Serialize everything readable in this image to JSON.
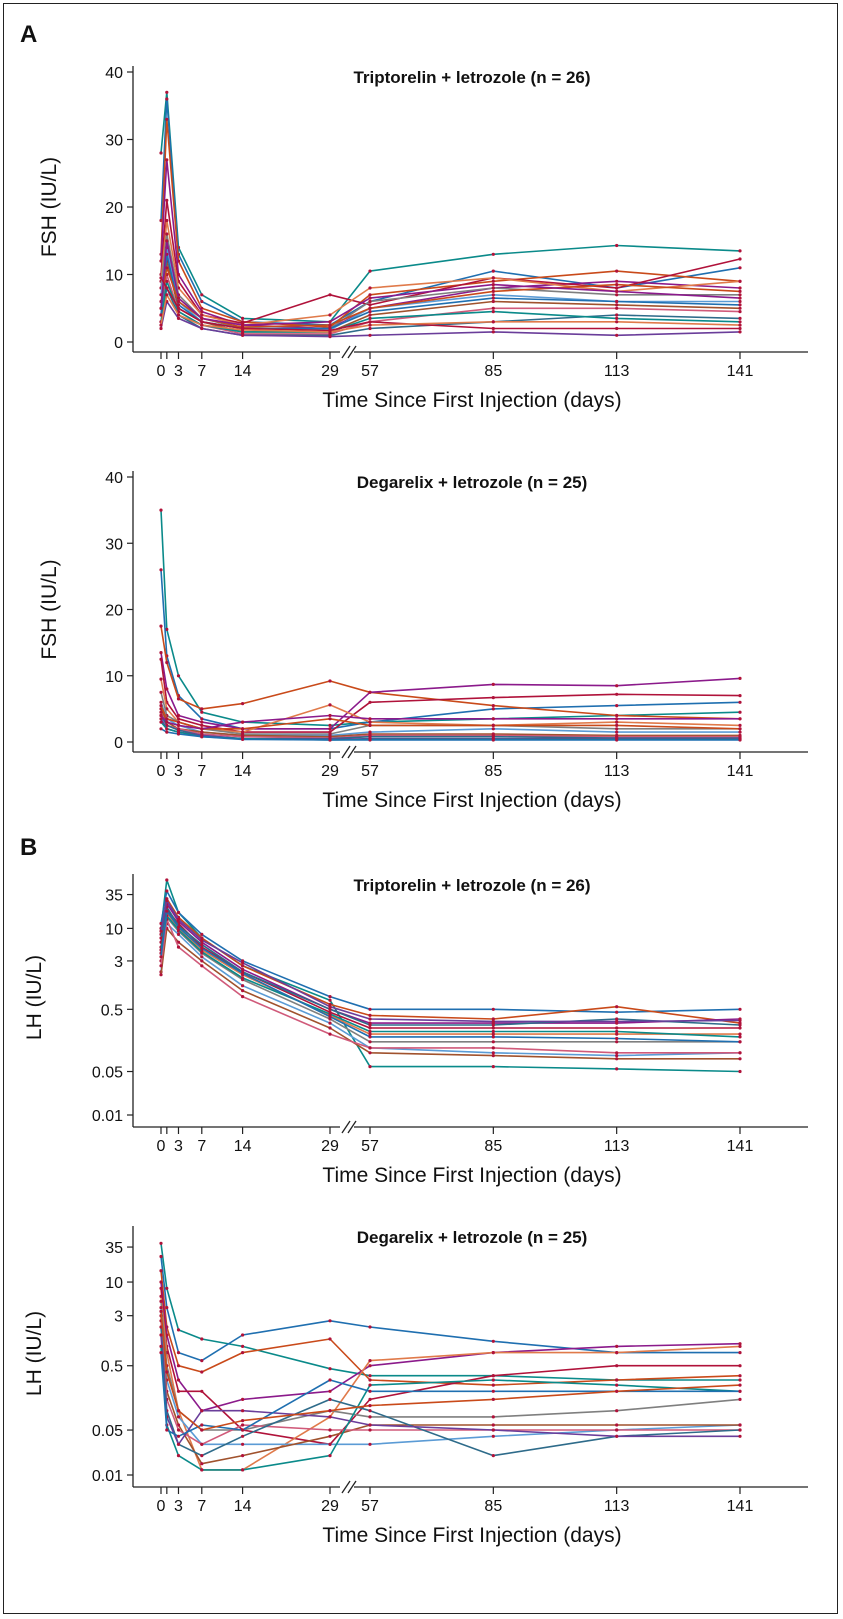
{
  "panel_labels": {
    "a": "A",
    "b": "B"
  },
  "chart_data": [
    {
      "type": "line",
      "title": "Triptorelin + letrozole (n = 26)",
      "xlabel": "Time Since First Injection (days)",
      "ylabel": "FSH (IU/L)",
      "x": [
        0,
        1,
        3,
        7,
        14,
        29,
        57,
        85,
        113,
        141
      ],
      "xticks": [
        "0",
        "3",
        "7",
        "14",
        "29",
        "57",
        "85",
        "113",
        "141"
      ],
      "yticks": [
        "0",
        "10",
        "20",
        "30",
        "40"
      ],
      "ylim": [
        0,
        40
      ],
      "yscale": "linear",
      "axis_break": "between 29 and 57",
      "series": [
        {
          "values": [
            28,
            37,
            14,
            7,
            3.5,
            3,
            10.5,
            13,
            14.3,
            13.5
          ]
        },
        {
          "values": [
            18,
            36,
            13,
            6,
            3,
            2.5,
            6,
            10.5,
            8,
            11
          ]
        },
        {
          "values": [
            13,
            33,
            12,
            5,
            3,
            2.2,
            7,
            9,
            10.5,
            9
          ]
        },
        {
          "values": [
            12,
            27,
            10,
            4.5,
            2.5,
            2,
            5,
            8,
            9,
            8
          ]
        },
        {
          "values": [
            10,
            21,
            9,
            4,
            2.8,
            7,
            5.5,
            9.5,
            8,
            12.3
          ]
        },
        {
          "values": [
            9,
            18,
            8,
            4,
            2.5,
            4,
            8,
            9.5,
            7.5,
            9
          ]
        },
        {
          "values": [
            8,
            16,
            7,
            3.5,
            2,
            2,
            6,
            8,
            7,
            7
          ]
        },
        {
          "values": [
            7,
            14,
            6,
            3,
            2,
            1.8,
            5,
            7,
            6,
            6
          ]
        },
        {
          "values": [
            5,
            12,
            5,
            3,
            1.5,
            1.5,
            4,
            6,
            5.5,
            5
          ]
        },
        {
          "values": [
            4,
            10,
            4.5,
            2.5,
            1.2,
            1.2,
            3,
            5,
            5,
            4.5
          ]
        },
        {
          "values": [
            3,
            8,
            4,
            2,
            1,
            1,
            2,
            3,
            4,
            3.5
          ]
        },
        {
          "values": [
            2,
            6,
            3.5,
            2,
            1,
            0.8,
            1,
            1.5,
            1,
            1.5
          ]
        },
        {
          "values": [
            3,
            9,
            4.5,
            2.5,
            1.5,
            1.5,
            3.5,
            4.5,
            3.5,
            3
          ]
        },
        {
          "values": [
            4,
            13,
            5.5,
            3,
            2,
            2,
            4.5,
            6.5,
            6,
            5.5
          ]
        },
        {
          "values": [
            6,
            11,
            6,
            3.5,
            2.2,
            2.5,
            5,
            7.5,
            8.5,
            7.5
          ]
        },
        {
          "values": [
            5,
            15,
            6.5,
            3.5,
            2.5,
            3,
            6.5,
            8.5,
            7.5,
            6.5
          ]
        },
        {
          "values": [
            9.5,
            8,
            5,
            3,
            2,
            1.7,
            3,
            2,
            2,
            2
          ]
        },
        {
          "values": [
            2.5,
            7,
            4,
            2.5,
            1.8,
            1.5,
            2.5,
            3,
            3,
            2.5
          ]
        }
      ]
    },
    {
      "type": "line",
      "title": "Degarelix + letrozole (n = 25)",
      "xlabel": "Time Since First Injection (days)",
      "ylabel": "FSH (IU/L)",
      "x": [
        0,
        1,
        3,
        7,
        14,
        29,
        57,
        85,
        113,
        141
      ],
      "xticks": [
        "0",
        "3",
        "7",
        "14",
        "29",
        "57",
        "85",
        "113",
        "141"
      ],
      "yticks": [
        "0",
        "10",
        "20",
        "30",
        "40"
      ],
      "ylim": [
        0,
        40
      ],
      "yscale": "linear",
      "axis_break": "between 29 and 57",
      "series": [
        {
          "values": [
            35,
            17,
            10,
            4.5,
            3,
            2.5,
            3,
            3.5,
            4,
            4.5
          ]
        },
        {
          "values": [
            26,
            13,
            7,
            3.5,
            2,
            2,
            3,
            5,
            5.5,
            6
          ]
        },
        {
          "values": [
            17.5,
            12,
            6.5,
            5,
            5.8,
            9.2,
            7.5,
            5.5,
            4,
            3.5
          ]
        },
        {
          "values": [
            13.5,
            8,
            4,
            3,
            2,
            2,
            7.5,
            8.7,
            8.5,
            9.6
          ]
        },
        {
          "values": [
            12.5,
            6,
            3.5,
            2.5,
            1.5,
            1.5,
            6,
            6.7,
            7.2,
            7
          ]
        },
        {
          "values": [
            9.5,
            5,
            3,
            2,
            1.5,
            5.6,
            3,
            2.5,
            3,
            2.5
          ]
        },
        {
          "values": [
            7.5,
            4,
            3,
            2,
            1.2,
            1.2,
            2.5,
            2.5,
            2,
            2
          ]
        },
        {
          "values": [
            6,
            3.5,
            2.5,
            1.5,
            1,
            1,
            1.5,
            2,
            1.5,
            1.5
          ]
        },
        {
          "values": [
            5,
            3,
            2,
            1.5,
            1,
            0.8,
            1.2,
            1.2,
            1,
            1
          ]
        },
        {
          "values": [
            4.5,
            2.5,
            2,
            1.2,
            0.8,
            0.6,
            1,
            1,
            0.8,
            0.8
          ]
        },
        {
          "values": [
            4,
            2.5,
            1.8,
            1,
            0.5,
            0.5,
            0.8,
            0.8,
            0.6,
            0.6
          ]
        },
        {
          "values": [
            3.5,
            2,
            1.5,
            1,
            0.5,
            0.4,
            0.5,
            0.5,
            0.5,
            0.5
          ]
        },
        {
          "values": [
            3,
            2,
            1.5,
            0.8,
            0.5,
            0.3,
            0.4,
            0.4,
            0.4,
            0.4
          ]
        },
        {
          "values": [
            2,
            1.5,
            1.2,
            0.8,
            0.4,
            0.3,
            0.3,
            0.3,
            0.3,
            0.3
          ]
        },
        {
          "values": [
            5.5,
            3.5,
            3,
            2,
            2,
            3.5,
            2.5,
            2.5,
            2.5,
            2
          ]
        },
        {
          "values": [
            4,
            3,
            2.5,
            2,
            3,
            4,
            3.5,
            3.5,
            3.5,
            3.5
          ]
        }
      ]
    },
    {
      "type": "line",
      "title": "Triptorelin + letrozole (n = 26)",
      "xlabel": "Time Since First Injection (days)",
      "ylabel": "LH (IU/L)",
      "x": [
        0,
        1,
        3,
        7,
        14,
        29,
        57,
        85,
        113,
        141
      ],
      "xticks": [
        "0",
        "3",
        "7",
        "14",
        "29",
        "57",
        "85",
        "113",
        "141"
      ],
      "yticks": [
        "0.01",
        "0.05",
        "0.5",
        "3",
        "10",
        "35"
      ],
      "ylim": [
        0.01,
        60
      ],
      "yscale": "log",
      "axis_break": "between 29 and 57",
      "series": [
        {
          "values": [
            10,
            60,
            18,
            7,
            2.5,
            0.7,
            0.06,
            0.06,
            0.055,
            0.05
          ]
        },
        {
          "values": [
            12,
            40,
            18,
            8,
            3,
            0.8,
            0.5,
            0.5,
            0.45,
            0.5
          ]
        },
        {
          "values": [
            8,
            30,
            15,
            7,
            2.5,
            0.6,
            0.4,
            0.35,
            0.55,
            0.3
          ]
        },
        {
          "values": [
            6,
            25,
            13,
            6,
            2.2,
            0.5,
            0.3,
            0.3,
            0.3,
            0.35
          ]
        },
        {
          "values": [
            5,
            20,
            12,
            5,
            2,
            0.45,
            0.25,
            0.25,
            0.25,
            0.25
          ]
        },
        {
          "values": [
            4,
            18,
            10,
            4.5,
            1.8,
            0.4,
            0.2,
            0.2,
            0.2,
            0.2
          ]
        },
        {
          "values": [
            3,
            15,
            9,
            4,
            1.5,
            0.35,
            0.15,
            0.15,
            0.15,
            0.15
          ]
        },
        {
          "values": [
            2,
            12,
            8,
            3.5,
            1.2,
            0.3,
            0.12,
            0.1,
            0.09,
            0.1
          ]
        },
        {
          "values": [
            1.8,
            10,
            6,
            3,
            1,
            0.25,
            0.1,
            0.09,
            0.08,
            0.08
          ]
        },
        {
          "values": [
            2.5,
            14,
            5,
            2.5,
            0.8,
            0.2,
            0.12,
            0.12,
            0.1,
            0.1
          ]
        },
        {
          "values": [
            7,
            22,
            11,
            5.5,
            2,
            0.5,
            0.28,
            0.28,
            0.35,
            0.28
          ]
        },
        {
          "values": [
            9,
            28,
            14,
            6.5,
            2.8,
            0.55,
            0.35,
            0.32,
            0.32,
            0.33
          ]
        },
        {
          "values": [
            4.5,
            16,
            9.5,
            4.2,
            1.6,
            0.42,
            0.22,
            0.22,
            0.22,
            0.18
          ]
        },
        {
          "values": [
            3.5,
            19,
            10.5,
            4.8,
            1.9,
            0.38,
            0.18,
            0.18,
            0.17,
            0.15
          ]
        }
      ]
    },
    {
      "type": "line",
      "title": "Degarelix + letrozole (n = 25)",
      "xlabel": "Time Since First Injection (days)",
      "ylabel": "LH (IU/L)",
      "x": [
        0,
        1,
        3,
        7,
        14,
        29,
        57,
        85,
        113,
        141
      ],
      "xticks": [
        "0",
        "3",
        "7",
        "14",
        "29",
        "57",
        "85",
        "113",
        "141"
      ],
      "yticks": [
        "0.01",
        "0.05",
        "0.5",
        "3",
        "10",
        "35"
      ],
      "ylim": [
        0.01,
        60
      ],
      "yscale": "log",
      "axis_break": "between 29 and 57",
      "series": [
        {
          "values": [
            40,
            8,
            1.8,
            1.3,
            1.0,
            0.45,
            0.35,
            0.35,
            0.3,
            0.3
          ]
        },
        {
          "values": [
            25,
            4,
            0.8,
            0.6,
            1.5,
            2.5,
            2,
            1.2,
            0.8,
            0.8
          ]
        },
        {
          "values": [
            15,
            2,
            0.5,
            0.4,
            0.8,
            1.3,
            0.3,
            0.25,
            0.3,
            0.35
          ]
        },
        {
          "values": [
            10,
            1.5,
            0.3,
            0.1,
            0.15,
            0.2,
            0.5,
            0.8,
            1.0,
            1.1
          ]
        },
        {
          "values": [
            8,
            1,
            0.2,
            0.2,
            0.05,
            0.03,
            0.15,
            0.35,
            0.5,
            0.5
          ]
        },
        {
          "values": [
            6,
            0.8,
            0.1,
            0.012,
            0.012,
            0.08,
            0.6,
            0.8,
            0.8,
            1.0
          ]
        },
        {
          "values": [
            5,
            0.5,
            0.1,
            0.05,
            0.05,
            0.1,
            0.08,
            0.08,
            0.1,
            0.15
          ]
        },
        {
          "values": [
            4,
            0.3,
            0.08,
            0.03,
            0.03,
            0.03,
            0.03,
            0.04,
            0.05,
            0.06
          ]
        },
        {
          "values": [
            3,
            0.2,
            0.06,
            0.015,
            0.02,
            0.04,
            0.06,
            0.06,
            0.06,
            0.06
          ]
        },
        {
          "values": [
            2.5,
            0.15,
            0.05,
            0.03,
            0.06,
            0.05,
            0.05,
            0.05,
            0.05,
            0.05
          ]
        },
        {
          "values": [
            2,
            0.1,
            0.03,
            0.02,
            0.04,
            0.15,
            0.1,
            0.02,
            0.04,
            0.05
          ]
        },
        {
          "values": [
            1.5,
            0.08,
            0.03,
            0.1,
            0.1,
            0.08,
            0.06,
            0.05,
            0.04,
            0.04
          ]
        },
        {
          "values": [
            1,
            0.06,
            0.02,
            0.012,
            0.012,
            0.02,
            0.25,
            0.3,
            0.25,
            0.2
          ]
        },
        {
          "values": [
            0.8,
            0.05,
            0.04,
            0.06,
            0.05,
            0.3,
            0.2,
            0.2,
            0.2,
            0.2
          ]
        },
        {
          "values": [
            3.5,
            0.4,
            0.1,
            0.05,
            0.07,
            0.1,
            0.12,
            0.15,
            0.2,
            0.25
          ]
        }
      ]
    }
  ]
}
